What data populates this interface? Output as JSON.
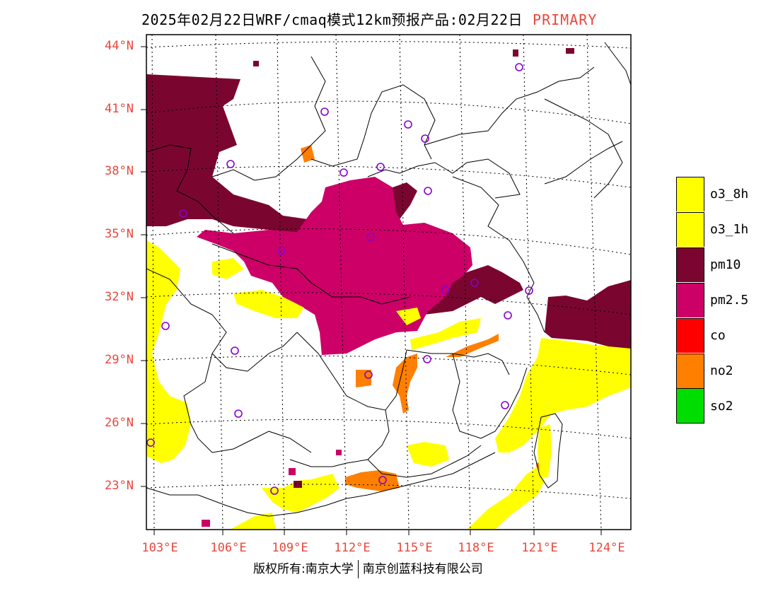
{
  "title": {
    "main": "2025年02月22日WRF/cmaq模式12km预报产品:02月22日",
    "tag": "PRIMARY"
  },
  "colors": {
    "o3_8h": "#ffff00",
    "o3_1h": "#ffff00",
    "pm10": "#7a0630",
    "pm25": "#cc0066",
    "co": "#ff0000",
    "no2": "#ff7f00",
    "so2": "#00dd00",
    "label": "#e8473c"
  },
  "latitudes": [
    "44°N",
    "41°N",
    "38°N",
    "35°N",
    "32°N",
    "29°N",
    "26°N",
    "23°N"
  ],
  "longitudes": [
    "103°E",
    "106°E",
    "109°E",
    "112°E",
    "115°E",
    "118°E",
    "121°E",
    "124°E"
  ],
  "legend": [
    {
      "label": "o3_8h",
      "color": "#ffff00"
    },
    {
      "label": "o3_1h",
      "color": "#ffff00"
    },
    {
      "label": "pm10",
      "color": "#7a0630"
    },
    {
      "label": "pm2.5",
      "color": "#cc0066"
    },
    {
      "label": "co",
      "color": "#ff0000"
    },
    {
      "label": "no2",
      "color": "#ff7f00"
    },
    {
      "label": "so2",
      "color": "#00dd00"
    }
  ],
  "footer": {
    "left": "版权所有:南京大学",
    "right": "南京创蓝科技有限公司"
  }
}
